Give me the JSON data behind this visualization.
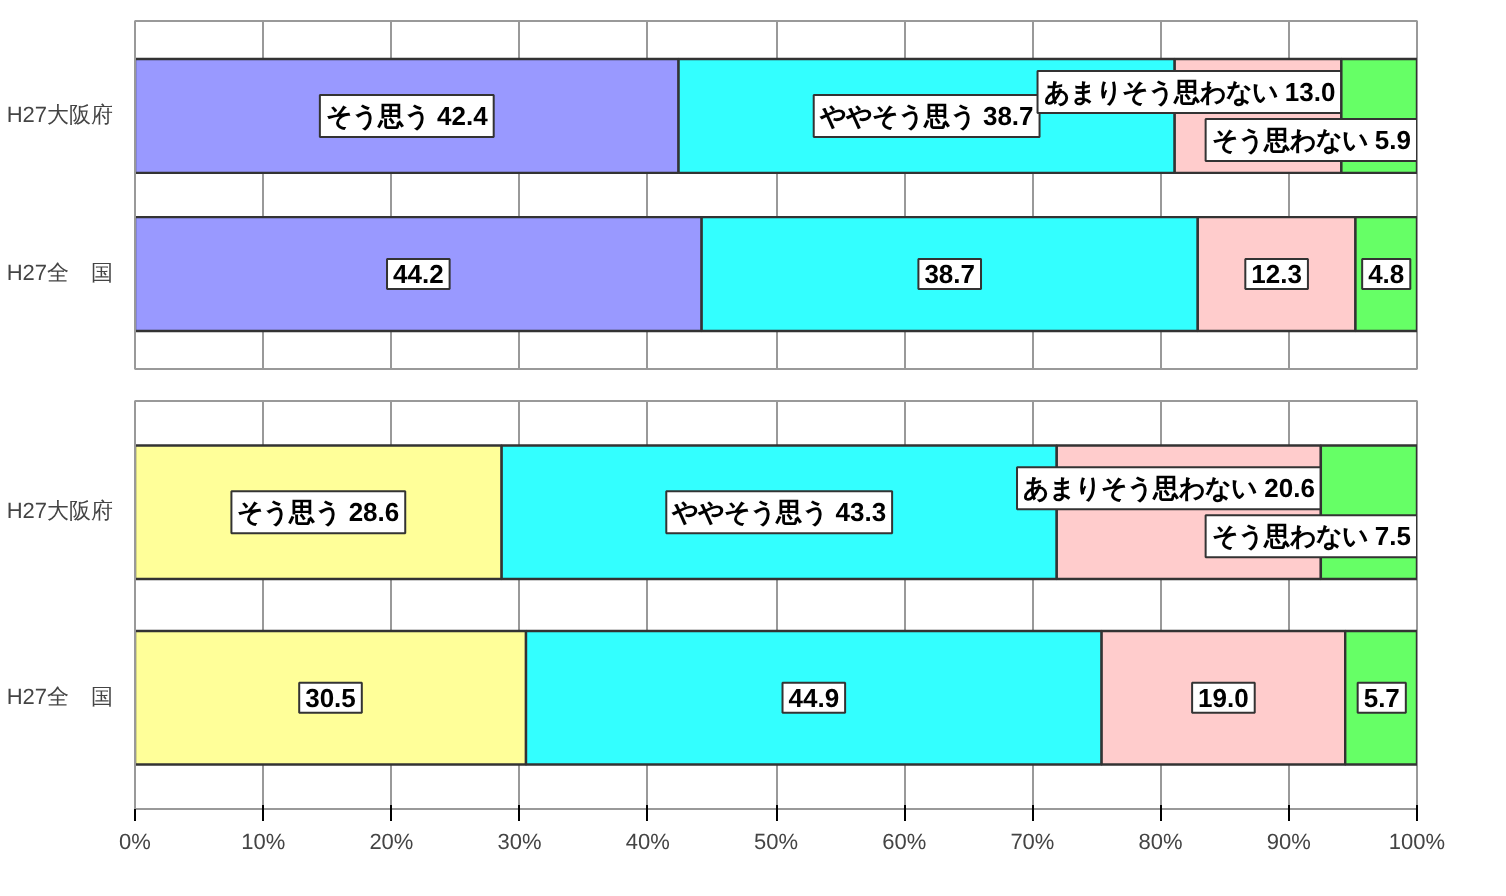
{
  "chart_data": [
    {
      "type": "bar",
      "orientation": "horizontal",
      "stacked": true,
      "categories": [
        "H27大阪府",
        "H27全　国"
      ],
      "xlim": [
        0,
        100
      ],
      "xticks": [
        0,
        10,
        20,
        30,
        40,
        50,
        60,
        70,
        80,
        90,
        100
      ],
      "grid": "x",
      "tick_labels": "y",
      "series": [
        {
          "color": "#9999ff",
          "values": [
            42.4,
            44.2
          ],
          "value_labels": [
            "そう思う 42.4",
            "44.2"
          ]
        },
        {
          "color": "#33ffff",
          "values": [
            38.7,
            38.7
          ],
          "value_labels": [
            "ややそう思う 38.7",
            "38.7"
          ]
        },
        {
          "color": "#ffcccc",
          "values": [
            13.0,
            12.3
          ],
          "value_labels": [
            "あまりそう思わない 13.0",
            "12.3"
          ]
        },
        {
          "color": "#66ff66",
          "values": [
            5.9,
            4.8
          ],
          "value_labels": [
            "そう思わない 5.9",
            "4.8"
          ]
        }
      ]
    },
    {
      "type": "bar",
      "orientation": "horizontal",
      "stacked": true,
      "categories": [
        "H27大阪府",
        "H27全　国"
      ],
      "xlim": [
        0,
        100
      ],
      "xticks": [
        {
          "value": 0,
          "label": "0%"
        },
        {
          "value": 10,
          "label": "10%"
        },
        {
          "value": 20,
          "label": "20%"
        },
        {
          "value": 30,
          "label": "30%"
        },
        {
          "value": 40,
          "label": "40%"
        },
        {
          "value": 50,
          "label": "50%"
        },
        {
          "value": 60,
          "label": "60%"
        },
        {
          "value": 70,
          "label": "70%"
        },
        {
          "value": 80,
          "label": "80%"
        },
        {
          "value": 90,
          "label": "90%"
        },
        {
          "value": 100,
          "label": "100%"
        }
      ],
      "grid": "x",
      "series": [
        {
          "color": "#ffff99",
          "values": [
            28.6,
            30.5
          ],
          "value_labels": [
            "そう思う 28.6",
            "30.5"
          ]
        },
        {
          "color": "#33ffff",
          "values": [
            43.3,
            44.9
          ],
          "value_labels": [
            "ややそう思う 43.3",
            "44.9"
          ]
        },
        {
          "color": "#ffcccc",
          "values": [
            20.6,
            19.0
          ],
          "value_labels": [
            "あまりそう思わない 20.6",
            "19.0"
          ]
        },
        {
          "color": "#66ff66",
          "values": [
            7.5,
            5.7
          ],
          "value_labels": [
            "そう思わない 7.5",
            "5.7"
          ]
        }
      ]
    }
  ]
}
